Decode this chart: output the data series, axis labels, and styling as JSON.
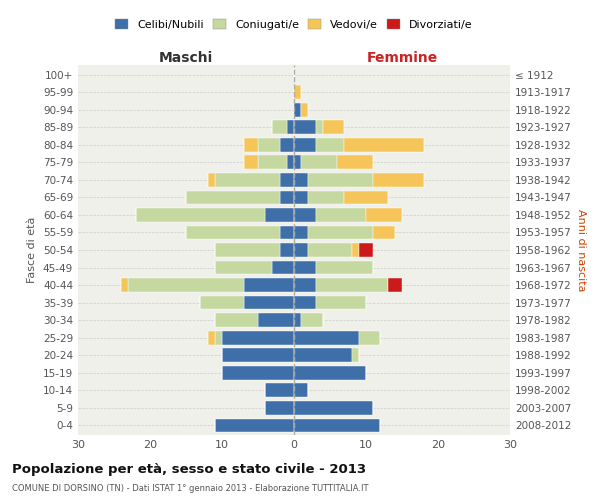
{
  "age_groups": [
    "100+",
    "95-99",
    "90-94",
    "85-89",
    "80-84",
    "75-79",
    "70-74",
    "65-69",
    "60-64",
    "55-59",
    "50-54",
    "45-49",
    "40-44",
    "35-39",
    "30-34",
    "25-29",
    "20-24",
    "15-19",
    "10-14",
    "5-9",
    "0-4"
  ],
  "birth_years": [
    "≤ 1912",
    "1913-1917",
    "1918-1922",
    "1923-1927",
    "1928-1932",
    "1933-1937",
    "1938-1942",
    "1943-1947",
    "1948-1952",
    "1953-1957",
    "1958-1962",
    "1963-1967",
    "1968-1972",
    "1973-1977",
    "1978-1982",
    "1983-1987",
    "1988-1992",
    "1993-1997",
    "1998-2002",
    "2003-2007",
    "2008-2012"
  ],
  "male_celibi": [
    0,
    0,
    0,
    1,
    2,
    1,
    2,
    2,
    4,
    2,
    2,
    3,
    7,
    7,
    5,
    10,
    10,
    10,
    4,
    4,
    11
  ],
  "male_coniugati": [
    0,
    0,
    0,
    2,
    3,
    4,
    9,
    13,
    18,
    13,
    9,
    8,
    16,
    6,
    6,
    1,
    0,
    0,
    0,
    0,
    0
  ],
  "male_vedovi": [
    0,
    0,
    0,
    0,
    2,
    2,
    1,
    0,
    0,
    0,
    0,
    0,
    1,
    0,
    0,
    1,
    0,
    0,
    0,
    0,
    0
  ],
  "male_divorziati": [
    0,
    0,
    0,
    0,
    0,
    0,
    0,
    0,
    0,
    0,
    0,
    0,
    0,
    0,
    0,
    0,
    0,
    0,
    0,
    0,
    0
  ],
  "female_celibi": [
    0,
    0,
    1,
    3,
    3,
    1,
    2,
    2,
    3,
    2,
    2,
    3,
    3,
    3,
    1,
    9,
    8,
    10,
    2,
    11,
    12
  ],
  "female_coniugati": [
    0,
    0,
    0,
    1,
    4,
    5,
    9,
    5,
    7,
    9,
    6,
    8,
    10,
    7,
    3,
    3,
    1,
    0,
    0,
    0,
    0
  ],
  "female_vedovi": [
    0,
    1,
    1,
    3,
    11,
    5,
    7,
    6,
    5,
    3,
    1,
    0,
    0,
    0,
    0,
    0,
    0,
    0,
    0,
    0,
    0
  ],
  "female_divorziati": [
    0,
    0,
    0,
    0,
    0,
    0,
    0,
    0,
    0,
    0,
    2,
    0,
    2,
    0,
    0,
    0,
    0,
    0,
    0,
    0,
    0
  ],
  "color_celibi": "#3f6fa8",
  "color_coniugati": "#c5d8a0",
  "color_vedovi": "#f5c55a",
  "color_divorziati": "#cc1a1a",
  "xlim": 30,
  "title": "Popolazione per età, sesso e stato civile - 2013",
  "subtitle": "COMUNE DI DORSINO (TN) - Dati ISTAT 1° gennaio 2013 - Elaborazione TUTTITALIA.IT",
  "ylabel_left": "Fasce di età",
  "ylabel_right": "Anni di nascita",
  "xlabel_left": "Maschi",
  "xlabel_right": "Femmine",
  "bg_color": "#f0f0eb",
  "bar_height": 0.78
}
